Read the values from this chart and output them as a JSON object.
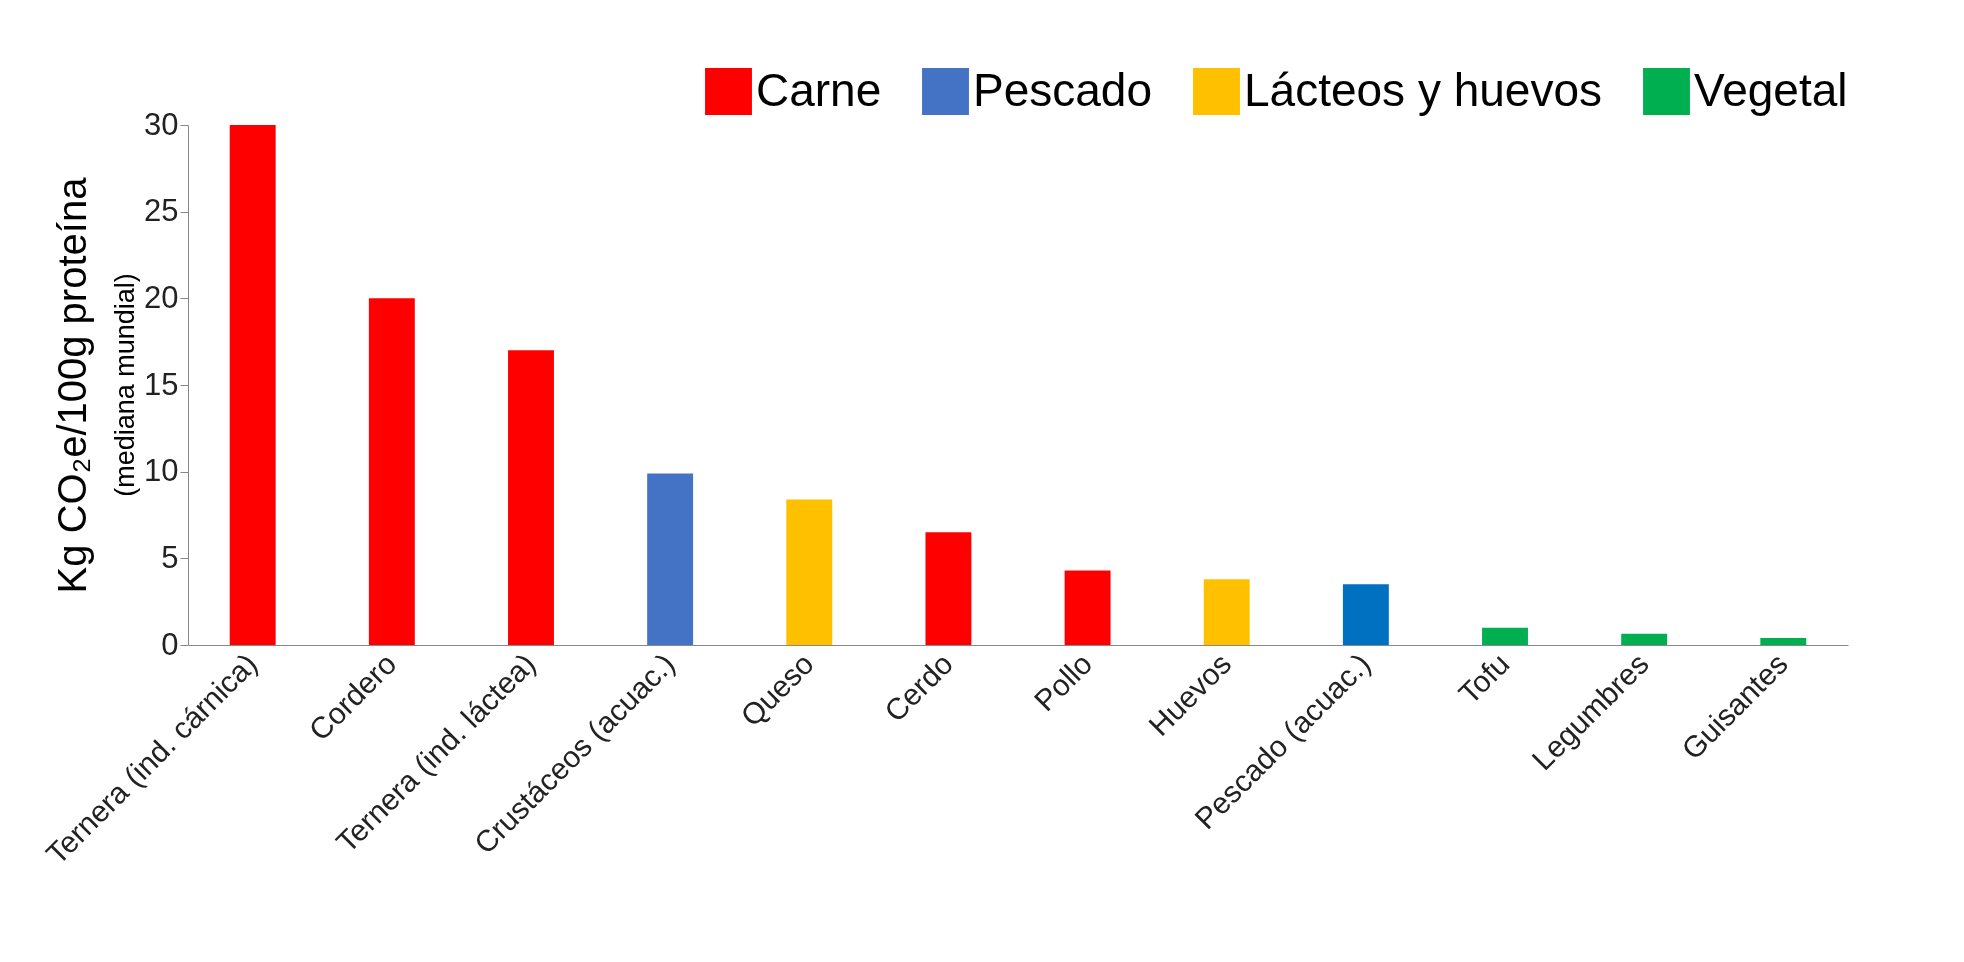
{
  "chart_data": {
    "type": "bar",
    "ylabel": "Kg CO₂e/100g proteína",
    "annotations": [
      "(mediana mundial)"
    ],
    "categories": [
      "Ternera (ind. cárnica)",
      "Cordero",
      "Ternera (ind. láctea)",
      "Crustáceos (acuac.)",
      "Queso",
      "Cerdo",
      "Pollo",
      "Huevos",
      "Pescado (acuac.)",
      "Tofu",
      "Legumbres",
      "Guisantes"
    ],
    "series": [
      {
        "name": "Carne",
        "color": "#ff0000",
        "values": [
          30,
          20,
          17,
          null,
          null,
          6.5,
          4.3,
          null,
          null,
          null,
          null,
          null
        ]
      },
      {
        "name": "Pescado",
        "color": "#4472c4",
        "colors": [
          null,
          null,
          null,
          "#4472c4",
          null,
          null,
          null,
          null,
          "#0070c0",
          null,
          null,
          null
        ],
        "values": [
          null,
          null,
          null,
          9.9,
          null,
          null,
          null,
          null,
          3.5,
          null,
          null,
          null
        ]
      },
      {
        "name": "Lácteos y huevos",
        "color": "#ffc000",
        "values": [
          null,
          null,
          null,
          null,
          8.4,
          null,
          null,
          3.8,
          null,
          null,
          null,
          null
        ]
      },
      {
        "name": "Vegetal",
        "color": "#00b050",
        "values": [
          null,
          null,
          null,
          null,
          null,
          null,
          null,
          null,
          null,
          1.0,
          0.65,
          0.4
        ]
      }
    ],
    "ylim": [
      0,
      30
    ],
    "yticks": [
      0,
      5,
      10,
      15,
      20,
      25,
      30
    ],
    "legend": "top right"
  }
}
